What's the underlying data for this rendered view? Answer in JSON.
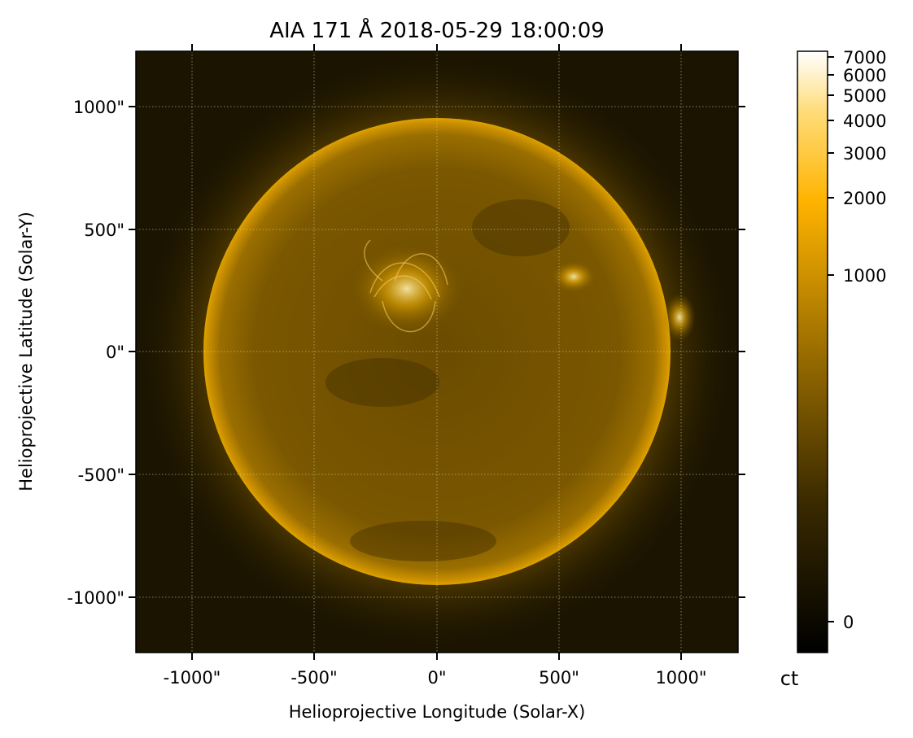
{
  "figure": {
    "title": "AIA 171 Å 2018-05-29 18:00:09",
    "xlabel": "Helioprojective Longitude (Solar-X)",
    "ylabel": "Helioprojective Latitude (Solar-Y)",
    "colorbar_unit": "ct"
  },
  "axes": {
    "x_ticks": [
      "-1000\"",
      "-500\"",
      "0\"",
      "500\"",
      "1000\""
    ],
    "y_ticks": [
      "1000\"",
      "500\"",
      "0\"",
      "-500\"",
      "-1000\""
    ]
  },
  "colorbar": {
    "ticks": [
      "7000",
      "6000",
      "5000",
      "4000",
      "3000",
      "2000",
      "1000",
      "0"
    ]
  },
  "colors": {
    "background": "#1b1400",
    "sun_disk": "#7a5700",
    "limb": "#d59a00",
    "active_region": "#ffdf80"
  }
}
